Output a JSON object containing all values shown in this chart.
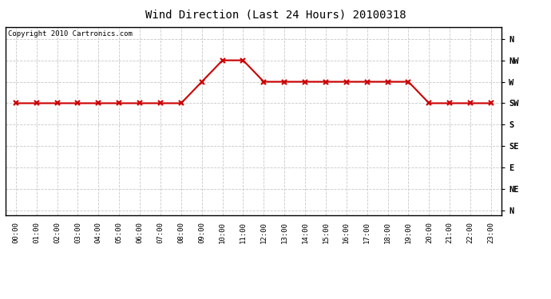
{
  "title": "Wind Direction (Last 24 Hours) 20100318",
  "copyright": "Copyright 2010 Cartronics.com",
  "background_color": "#ffffff",
  "plot_bg_color": "#ffffff",
  "grid_color": "#c8c8c8",
  "line_color": "#cc0000",
  "marker_color": "#cc0000",
  "hours": [
    0,
    1,
    2,
    3,
    4,
    5,
    6,
    7,
    8,
    9,
    10,
    11,
    12,
    13,
    14,
    15,
    16,
    17,
    18,
    19,
    20,
    21,
    22,
    23
  ],
  "dir_sequence": [
    225,
    225,
    225,
    225,
    225,
    225,
    225,
    225,
    225,
    270,
    315,
    315,
    270,
    270,
    270,
    270,
    270,
    270,
    270,
    270,
    225,
    225,
    225,
    225
  ],
  "y_ticks": [
    360,
    315,
    270,
    225,
    180,
    135,
    90,
    45,
    0
  ],
  "y_tick_labels": [
    "N",
    "NW",
    "W",
    "SW",
    "S",
    "SE",
    "E",
    "NE",
    "N"
  ],
  "xlim": [
    -0.5,
    23.5
  ],
  "ylim": [
    -10,
    385
  ],
  "title_fontsize": 10,
  "copyright_fontsize": 6.5,
  "tick_fontsize": 6.5,
  "ytick_fontsize": 7.5
}
